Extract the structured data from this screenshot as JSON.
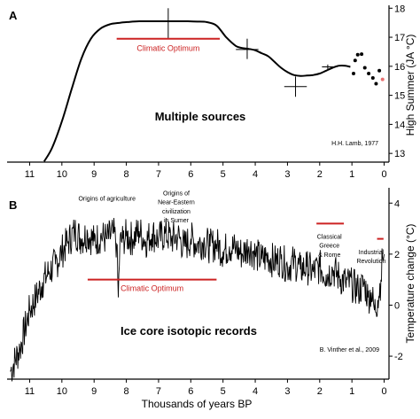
{
  "chart_data": [
    {
      "type": "line",
      "panel_label": "A",
      "ylabel": "High Summer (JA °C)",
      "ylim": [
        12.7,
        18.1
      ],
      "xlim": [
        11.7,
        -0.15
      ],
      "x_ticks": [
        11,
        10,
        9,
        8,
        7,
        6,
        5,
        4,
        3,
        2,
        1,
        0
      ],
      "y_ticks": [
        13,
        14,
        15,
        16,
        17,
        18
      ],
      "center_text": "Multiple sources",
      "credit": "H.H. Lamb, 1977",
      "annotations": [
        {
          "text": "Climatic Optimum",
          "x_from": 8.3,
          "x_to": 5.1,
          "y": 16.95,
          "color": "#cc2222"
        }
      ],
      "series": [
        {
          "x": [
            10.55,
            10.3,
            10.0,
            9.7,
            9.4,
            9.1,
            8.8,
            8.5,
            8.2,
            7.9,
            7.6,
            7.3,
            7.0,
            6.7,
            6.4,
            6.1,
            5.8,
            5.5,
            5.2,
            4.9,
            4.6,
            4.4,
            4.2,
            4.0,
            3.8,
            3.6,
            3.4,
            3.2,
            3.0,
            2.8,
            2.6,
            2.4,
            2.2,
            2.0,
            1.8,
            1.6,
            1.4,
            1.2,
            1.05
          ],
          "y": [
            12.72,
            13.2,
            14.1,
            15.2,
            16.25,
            16.95,
            17.3,
            17.45,
            17.5,
            17.53,
            17.55,
            17.55,
            17.55,
            17.55,
            17.55,
            17.55,
            17.54,
            17.52,
            17.4,
            17.0,
            16.7,
            16.63,
            16.6,
            16.55,
            16.45,
            16.35,
            16.15,
            15.95,
            15.8,
            15.7,
            15.67,
            15.68,
            15.7,
            15.75,
            15.85,
            15.95,
            16.02,
            16.02,
            15.98
          ],
          "color": "#000000"
        }
      ],
      "error_bars": [
        {
          "x": 6.7,
          "y": 17.55,
          "x_err": 0.45,
          "y_err_low": 16.95,
          "y_err_high": 18.0
        },
        {
          "x": 4.25,
          "y": 16.58,
          "x_err": 0.35,
          "y_err_low": 16.25,
          "y_err_high": 16.95
        },
        {
          "x": 2.75,
          "y": 15.3,
          "x_err": 0.35,
          "y_err_low": 14.95,
          "y_err_high": 15.65
        },
        {
          "x": 1.75,
          "y": 15.98,
          "x_err": 0.18,
          "y_err_low": 15.9,
          "y_err_high": 16.06
        }
      ],
      "points": [
        {
          "x": 0.95,
          "y": 15.75,
          "color": "#000000"
        },
        {
          "x": 0.9,
          "y": 16.2,
          "color": "#000000"
        },
        {
          "x": 0.82,
          "y": 16.4,
          "color": "#000000"
        },
        {
          "x": 0.7,
          "y": 16.42,
          "color": "#000000"
        },
        {
          "x": 0.6,
          "y": 15.95,
          "color": "#000000"
        },
        {
          "x": 0.48,
          "y": 15.75,
          "color": "#000000"
        },
        {
          "x": 0.35,
          "y": 15.6,
          "color": "#000000"
        },
        {
          "x": 0.25,
          "y": 15.4,
          "color": "#000000"
        },
        {
          "x": 0.15,
          "y": 15.85,
          "color": "#000000"
        },
        {
          "x": 0.05,
          "y": 15.55,
          "color": "#e87070"
        }
      ]
    },
    {
      "type": "line",
      "panel_label": "B",
      "ylabel": "Temperature change (°C)",
      "xlabel": "Thousands of years BP",
      "ylim": [
        -2.9,
        4.6
      ],
      "xlim": [
        11.7,
        -0.15
      ],
      "x_ticks": [
        11,
        10,
        9,
        8,
        7,
        6,
        5,
        4,
        3,
        2,
        1,
        0
      ],
      "y_ticks": [
        -2,
        0,
        2,
        4
      ],
      "center_text": "Ice core isotopic records",
      "credit": "B. Vinther et al., 2009",
      "annotations": [
        {
          "text": "Origins of agriculture",
          "x": 8.6,
          "y": 4.1
        },
        {
          "text": "Origins of",
          "x": 6.45,
          "y": 4.3
        },
        {
          "text": "Near-Eastern",
          "x": 6.45,
          "y": 3.95
        },
        {
          "text": "civilization",
          "x": 6.45,
          "y": 3.6
        },
        {
          "text": "in Sumer",
          "x": 6.45,
          "y": 3.25
        },
        {
          "text": "Classical",
          "x": 1.7,
          "y": 2.6
        },
        {
          "text": "Greece",
          "x": 1.7,
          "y": 2.25
        },
        {
          "text": "& Rome",
          "x": 1.7,
          "y": 1.9
        },
        {
          "text": "Industrial",
          "x": 0.4,
          "y": 2.0
        },
        {
          "text": "Revolution",
          "x": 0.4,
          "y": 1.65
        },
        {
          "text": "Climatic Optimum",
          "x_from": 9.2,
          "x_to": 5.2,
          "y": 1.0,
          "color": "#cc2222"
        }
      ],
      "markers": [
        {
          "x_from": 2.1,
          "x_to": 1.25,
          "y": 3.2,
          "color": "#cc2222"
        },
        {
          "x_from": 0.22,
          "x_to": 0.02,
          "y": 2.6,
          "color": "#cc2222"
        }
      ],
      "series": [
        {
          "x": [
            11.6,
            11.3,
            11.0,
            10.8,
            10.6,
            10.4,
            10.2,
            10.0,
            9.8,
            9.6,
            9.4,
            9.2,
            9.0,
            8.8,
            8.6,
            8.4,
            8.3,
            8.25,
            8.2,
            8.1,
            8.0,
            7.8,
            7.6,
            7.4,
            7.2,
            7.0,
            6.8,
            6.6,
            6.4,
            6.2,
            6.0,
            5.8,
            5.6,
            5.4,
            5.2,
            5.0,
            4.8,
            4.6,
            4.4,
            4.2,
            4.0,
            3.8,
            3.6,
            3.4,
            3.2,
            3.0,
            2.8,
            2.6,
            2.4,
            2.2,
            2.0,
            1.8,
            1.6,
            1.4,
            1.2,
            1.0,
            0.8,
            0.6,
            0.5,
            0.4,
            0.3,
            0.2,
            0.1,
            0.05,
            0.0
          ],
          "y": [
            -2.6,
            -1.7,
            -0.2,
            0.3,
            0.9,
            1.3,
            1.6,
            2.1,
            2.5,
            2.9,
            2.6,
            2.8,
            2.5,
            2.7,
            2.6,
            2.8,
            2.4,
            0.3,
            2.4,
            2.6,
            2.7,
            2.6,
            2.9,
            2.5,
            2.8,
            2.6,
            2.8,
            2.6,
            2.7,
            2.3,
            2.6,
            2.4,
            2.5,
            2.3,
            2.4,
            2.1,
            2.3,
            2.2,
            2.0,
            2.3,
            2.0,
            1.8,
            1.9,
            1.7,
            1.8,
            1.5,
            1.7,
            1.4,
            1.5,
            1.3,
            1.5,
            1.2,
            1.4,
            1.1,
            0.9,
            0.8,
            0.6,
            0.8,
            0.3,
            0.5,
            -0.2,
            0.2,
            1.0,
            1.9,
            2.0
          ],
          "color": "#000000"
        }
      ]
    }
  ]
}
